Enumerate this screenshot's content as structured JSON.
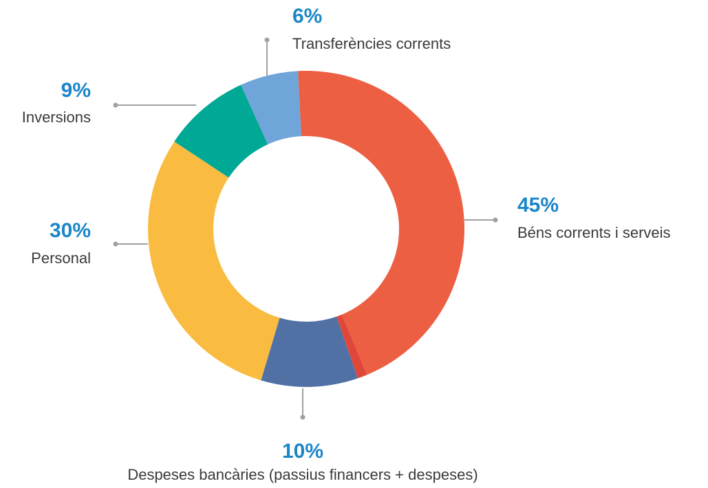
{
  "chart_data": {
    "type": "pie",
    "categories": [
      "Béns corrents i serveis",
      null,
      "Despeses bancàries (passius financers + despeses)",
      "Personal",
      "Inversions",
      "Transferències corrents"
    ],
    "values": [
      45,
      1,
      10,
      30,
      9,
      6
    ],
    "value_labels": [
      "45%",
      null,
      "10%",
      "30%",
      "9%",
      "6%"
    ],
    "colors": [
      "#ec5f43",
      "#e0473a",
      "#5171a5",
      "#f9bc41",
      "#00a896",
      "#70a5da"
    ]
  }
}
